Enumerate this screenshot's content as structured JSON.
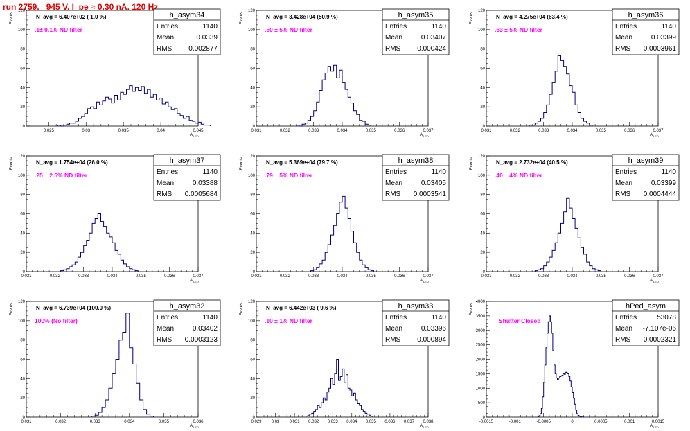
{
  "header": {
    "run_title": "run 2759,   945 V, I_pe ≈ 0.30 nA, 120 Hz"
  },
  "axis": {
    "xlabel": "A",
    "xlabel_sub": "LED",
    "ylabel": "Events"
  },
  "stats_labels": {
    "entries": "Entries",
    "mean": "Mean",
    "rms": "RMS"
  },
  "colors": {
    "histogram": "#000080",
    "filter_text": "#ff00ff",
    "run_title": "#e00000"
  },
  "chart_data": [
    {
      "type": "bar",
      "title": "h_asym34",
      "navg": "N_avg = 6.407e+02 ( 1.0 %)",
      "filter": ".1± 0.1% ND filter",
      "stats": {
        "entries": "1140",
        "mean": "0.0339",
        "rms": "0.002877"
      },
      "xlim": [
        0.022,
        0.045
      ],
      "ylim": [
        0,
        120
      ],
      "xticks": [
        0.025,
        0.03,
        0.035,
        0.04,
        0.045
      ],
      "xtick_labels": [
        "0.025",
        "0.03",
        "0.035",
        "0.04",
        "0.045"
      ],
      "yticks": [
        0,
        20,
        40,
        60,
        80,
        100,
        120
      ],
      "bin_start": 0.0262,
      "bin_width": 0.0004,
      "values": [
        1,
        0,
        1,
        2,
        3,
        3,
        5,
        8,
        10,
        13,
        18,
        20,
        18,
        25,
        22,
        26,
        30,
        28,
        24,
        32,
        27,
        35,
        33,
        38,
        42,
        36,
        40,
        37,
        41,
        34,
        38,
        30,
        33,
        27,
        29,
        23,
        25,
        20,
        17,
        18,
        13,
        11,
        8,
        10,
        6,
        5,
        3,
        4,
        2,
        1,
        1
      ]
    },
    {
      "type": "bar",
      "title": "h_asym35",
      "navg": "N_avg = 3.428e+04 (50.9 %)",
      "filter": ".50 ± 5% ND filter",
      "stats": {
        "entries": "1140",
        "mean": "0.03407",
        "rms": "0.000424"
      },
      "xlim": [
        0.031,
        0.037
      ],
      "ylim": [
        0,
        120
      ],
      "xticks": [
        0.031,
        0.032,
        0.033,
        0.034,
        0.035,
        0.036,
        0.037
      ],
      "xtick_labels": [
        "0.031",
        "0.032",
        "0.033",
        "0.034",
        "0.035",
        "0.036",
        "0.037"
      ],
      "yticks": [
        0,
        20,
        40,
        60,
        80,
        100,
        120
      ],
      "bin_start": 0.0324,
      "bin_width": 0.0001,
      "values": [
        1,
        0,
        2,
        3,
        6,
        10,
        16,
        25,
        37,
        48,
        55,
        62,
        57,
        63,
        50,
        58,
        45,
        38,
        30,
        24,
        16,
        12,
        6,
        5,
        2,
        1
      ]
    },
    {
      "type": "bar",
      "title": "h_asym36",
      "navg": "N_avg = 4.275e+04 (63.4 %)",
      "filter": ".63 ± 5% ND filter",
      "stats": {
        "entries": "1140",
        "mean": "0.03399",
        "rms": "0.0003961"
      },
      "xlim": [
        0.031,
        0.037
      ],
      "ylim": [
        0,
        120
      ],
      "xticks": [
        0.031,
        0.032,
        0.033,
        0.034,
        0.035,
        0.036,
        0.037
      ],
      "xtick_labels": [
        "0.031",
        "0.032",
        "0.033",
        "0.034",
        "0.035",
        "0.036",
        "0.037"
      ],
      "yticks": [
        0,
        20,
        40,
        60,
        80,
        100,
        120
      ],
      "bin_start": 0.0325,
      "bin_width": 0.0001,
      "values": [
        1,
        1,
        3,
        5,
        8,
        14,
        22,
        33,
        45,
        57,
        73,
        68,
        62,
        54,
        42,
        35,
        22,
        14,
        8,
        5,
        3,
        1
      ]
    },
    {
      "type": "bar",
      "title": "h_asym37",
      "navg": "N_avg = 1.754e+04 (26.0 %)",
      "filter": ".25 ± 2.5% ND filter",
      "stats": {
        "entries": "1140",
        "mean": "0.03388",
        "rms": "0.0005684"
      },
      "xlim": [
        0.031,
        0.037
      ],
      "ylim": [
        0,
        120
      ],
      "xticks": [
        0.031,
        0.032,
        0.033,
        0.034,
        0.035,
        0.036,
        0.037
      ],
      "xtick_labels": [
        "0.031",
        "0.032",
        "0.033",
        "0.034",
        "0.035",
        "0.036",
        "0.037"
      ],
      "yticks": [
        0,
        20,
        40,
        60,
        80,
        100,
        120
      ],
      "bin_start": 0.0322,
      "bin_width": 0.0001,
      "values": [
        1,
        2,
        3,
        5,
        7,
        10,
        15,
        20,
        27,
        32,
        40,
        50,
        55,
        60,
        52,
        47,
        40,
        36,
        30,
        22,
        18,
        12,
        8,
        5,
        3,
        2,
        1
      ]
    },
    {
      "type": "bar",
      "title": "h_asym38",
      "navg": "N_avg = 5.369e+04 (79.7 %)",
      "filter": ".79 ± 5% ND filter",
      "stats": {
        "entries": "1140",
        "mean": "0.03405",
        "rms": "0.0003541"
      },
      "xlim": [
        0.031,
        0.037
      ],
      "ylim": [
        0,
        120
      ],
      "xticks": [
        0.031,
        0.032,
        0.033,
        0.034,
        0.035,
        0.036,
        0.037
      ],
      "xtick_labels": [
        "0.031",
        "0.032",
        "0.033",
        "0.034",
        "0.035",
        "0.036",
        "0.037"
      ],
      "yticks": [
        0,
        20,
        40,
        60,
        80,
        100,
        120
      ],
      "bin_start": 0.0329,
      "bin_width": 0.0001,
      "values": [
        1,
        2,
        4,
        8,
        12,
        20,
        28,
        38,
        48,
        60,
        72,
        78,
        66,
        55,
        42,
        30,
        20,
        12,
        7,
        4,
        2,
        1
      ]
    },
    {
      "type": "bar",
      "title": "h_asym39",
      "navg": "N_avg = 2.732e+04 (40.5 %)",
      "filter": ".40 ± 4% ND filter",
      "stats": {
        "entries": "1140",
        "mean": "0.03399",
        "rms": "0.0004444"
      },
      "xlim": [
        0.031,
        0.037
      ],
      "ylim": [
        0,
        120
      ],
      "xticks": [
        0.031,
        0.032,
        0.033,
        0.034,
        0.035,
        0.036,
        0.037
      ],
      "xtick_labels": [
        "0.031",
        "0.032",
        "0.033",
        "0.034",
        "0.035",
        "0.036",
        "0.037"
      ],
      "yticks": [
        0,
        20,
        40,
        60,
        80,
        100,
        120
      ],
      "bin_start": 0.0327,
      "bin_width": 0.0001,
      "values": [
        1,
        2,
        3,
        6,
        10,
        15,
        22,
        30,
        40,
        50,
        62,
        76,
        66,
        55,
        45,
        35,
        25,
        18,
        10,
        6,
        3,
        2,
        1
      ]
    },
    {
      "type": "bar",
      "title": "h_asym32",
      "navg": "N_avg = 6.739e+04 (100.0 %)",
      "filter": "100% (No filter)",
      "stats": {
        "entries": "1140",
        "mean": "0.03402",
        "rms": "0.0003123"
      },
      "xlim": [
        0.031,
        0.036
      ],
      "ylim": [
        0,
        120
      ],
      "xticks": [
        0.031,
        0.032,
        0.033,
        0.034,
        0.035,
        0.036
      ],
      "xtick_labels": [
        "0.031",
        "0.032",
        "0.033",
        "0.034",
        "0.035",
        "0.036"
      ],
      "yticks": [
        0,
        20,
        40,
        60,
        80,
        100,
        120
      ],
      "bin_start": 0.0329,
      "bin_width": 0.0001,
      "values": [
        1,
        2,
        5,
        10,
        18,
        30,
        45,
        60,
        80,
        88,
        108,
        72,
        55,
        35,
        18,
        8,
        3,
        1
      ]
    },
    {
      "type": "bar",
      "title": "h_asym33",
      "navg": "N_avg = 6.442e+03 ( 9.6 %)",
      "filter": ".10 ± 1% ND filter",
      "stats": {
        "entries": "1140",
        "mean": "0.03396",
        "rms": "0.000894"
      },
      "xlim": [
        0.029,
        0.038
      ],
      "ylim": [
        0,
        120
      ],
      "xticks": [
        0.029,
        0.03,
        0.031,
        0.032,
        0.033,
        0.034,
        0.035,
        0.036,
        0.037,
        0.038
      ],
      "xtick_labels": [
        "0.029",
        "0.03",
        "0.031",
        "0.032",
        "0.033",
        "0.034",
        "0.035",
        "0.036",
        "0.037",
        "0.038"
      ],
      "yticks": [
        0,
        20,
        40,
        60,
        80,
        100,
        120
      ],
      "bin_start": 0.0316,
      "bin_width": 0.0001,
      "values": [
        1,
        2,
        3,
        4,
        6,
        8,
        12,
        10,
        15,
        20,
        18,
        26,
        30,
        40,
        34,
        45,
        60,
        38,
        42,
        50,
        36,
        44,
        30,
        28,
        22,
        25,
        18,
        14,
        12,
        8,
        6,
        4,
        3,
        2,
        1
      ]
    },
    {
      "type": "bar",
      "title": "hPed_asym",
      "navg": "",
      "filter": "Shutter Closed",
      "stats": {
        "entries": "53078",
        "mean": "-7.107e-06",
        "rms": "0.0002321"
      },
      "xlim": [
        -0.0015,
        0.0015
      ],
      "ylim": [
        0,
        4000
      ],
      "xticks": [
        -0.0015,
        -0.001,
        -0.0005,
        0,
        0.0005,
        0.001,
        0.0015
      ],
      "xtick_labels": [
        "-0.0015",
        "-0.001",
        "-0.0005",
        "0",
        "0.0005",
        "0.001",
        "0.0015"
      ],
      "yticks": [
        0,
        500,
        1000,
        1500,
        2000,
        2500,
        3000,
        3500,
        4000
      ],
      "bin_start": -0.0006,
      "bin_width": 2e-05,
      "values": [
        20,
        50,
        120,
        300,
        700,
        1200,
        1800,
        2400,
        2900,
        3300,
        3500,
        3300,
        2900,
        2300,
        1800,
        1500,
        1350,
        1300,
        1350,
        1400,
        1420,
        1450,
        1500,
        1480,
        1550,
        1530,
        1500,
        1400,
        1250,
        1050,
        850,
        650,
        450,
        250,
        120,
        60,
        30,
        15,
        8,
        4
      ]
    }
  ]
}
